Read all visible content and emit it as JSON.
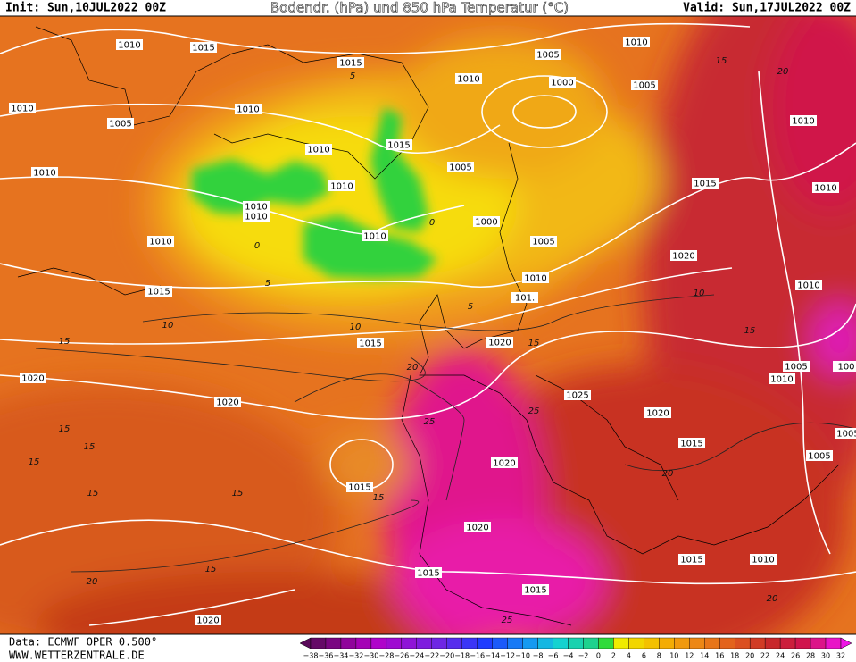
{
  "header": {
    "init": "Init: Sun,10JUL2022 00Z",
    "title": "Bodendr. (hPa) und 850 hPa Temperatur (°C)",
    "valid": "Valid: Sun,17JUL2022 00Z"
  },
  "map": {
    "isobar_labels": [
      "1010",
      "1015",
      "1015",
      "1010",
      "1010",
      "1005",
      "1010",
      "1005",
      "1010",
      "1000",
      "1005",
      "1010",
      "1010",
      "1015",
      "1005",
      "1010",
      "1010",
      "1010",
      "1010",
      "1000",
      "1010",
      "1005",
      "1015",
      "1010",
      "1010",
      "1020",
      "1010",
      "1015",
      "1010",
      "101.",
      "1020",
      "1015",
      "1020",
      "1005",
      "1010",
      "1020",
      "1025",
      "1020",
      "1015",
      "1005",
      "1020",
      "1015",
      "1020",
      "1015",
      "1015",
      "1010",
      "1015",
      "1020",
      "1005",
      "1005",
      "100"
    ],
    "temperature_labels": [
      "15",
      "20",
      "5",
      "0",
      "0",
      "5",
      "5",
      "10",
      "10",
      "10",
      "15",
      "15",
      "15",
      "15",
      "15",
      "15",
      "15",
      "15",
      "20",
      "25",
      "20",
      "20",
      "20",
      "25",
      "15",
      "15",
      "25"
    ]
  },
  "footer": {
    "source": "Data: ECMWF OPER 0.500°",
    "website": "WWW.WETTERZENTRALE.DE",
    "colorbar_labels": [
      "−38",
      "−36",
      "−34",
      "−32",
      "−30",
      "−28",
      "−26",
      "−24",
      "−22",
      "−20",
      "−18",
      "−16",
      "−14",
      "−12",
      "−10",
      "−8",
      "−6",
      "−4",
      "−2",
      "0",
      "2",
      "4",
      "6",
      "8",
      "10",
      "12",
      "14",
      "16",
      "18",
      "20",
      "22",
      "24",
      "26",
      "28",
      "30",
      "32"
    ]
  }
}
